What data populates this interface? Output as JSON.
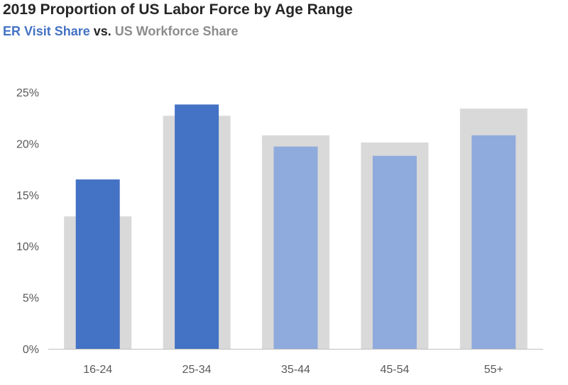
{
  "title": "2019 Proportion of US Labor Force by Age Range",
  "subtitle": {
    "er_label": "ER Visit Share",
    "vs_label": " vs. ",
    "us_label": "US Workforce Share"
  },
  "colors": {
    "er_highlight": "#4472c4",
    "er_muted": "#8faadc",
    "workforce": "#d9d9d9",
    "axis": "#bfbfbf",
    "tick_text": "#595959"
  },
  "chart_data": {
    "type": "bar",
    "categories": [
      "16-24",
      "25-34",
      "35-44",
      "45-54",
      "55+"
    ],
    "series": [
      {
        "name": "US Workforce Share",
        "values": [
          12.9,
          22.7,
          20.8,
          20.1,
          23.4
        ]
      },
      {
        "name": "ER Visit Share",
        "values": [
          16.5,
          23.8,
          19.7,
          18.8,
          20.8
        ]
      }
    ],
    "highlighted_categories": [
      "16-24",
      "25-34"
    ],
    "ylim": [
      0,
      25
    ],
    "yticks": [
      "0%",
      "5%",
      "10%",
      "15%",
      "20%",
      "25%"
    ],
    "grid": false,
    "legend": "none"
  }
}
